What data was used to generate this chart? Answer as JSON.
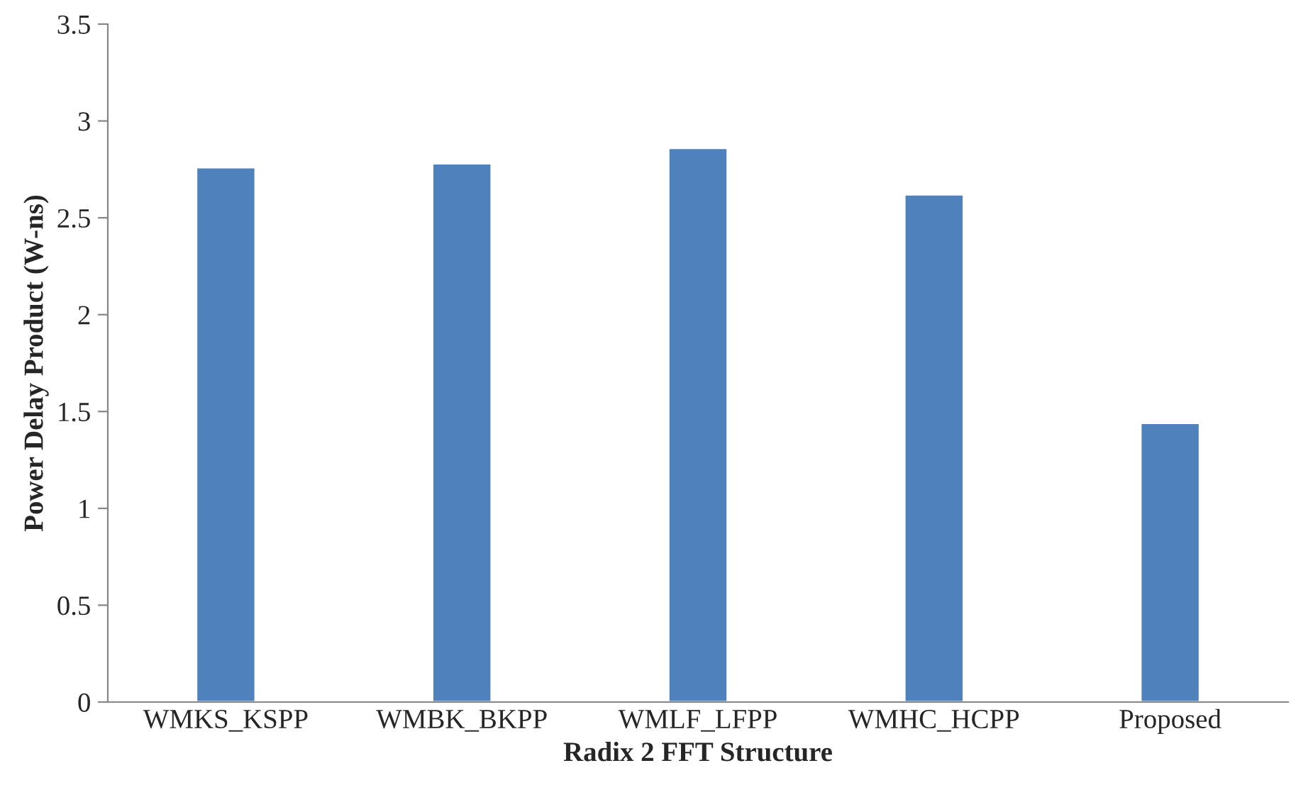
{
  "chart_data": {
    "type": "bar",
    "xlabel": "Radix 2 FFT Structure",
    "ylabel": "Power Delay Product (W-ns)",
    "categories": [
      "WMKS_KSPP",
      "WMBK_BKPP",
      "WMLF_LFPP",
      "WMHC_HCPP",
      "Proposed"
    ],
    "values": [
      2.76,
      2.78,
      2.86,
      2.62,
      1.44
    ],
    "color": "#4f81bd",
    "ylim": [
      0,
      3.5
    ],
    "yticks": [
      0,
      0.5,
      1,
      1.5,
      2,
      2.5,
      3,
      3.5
    ],
    "grid": false
  }
}
